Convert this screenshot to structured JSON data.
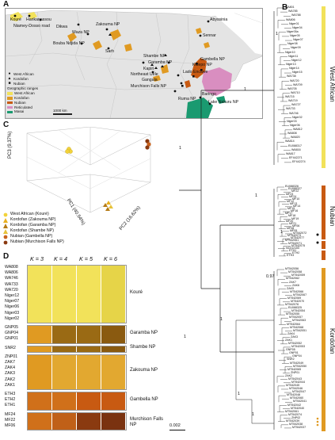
{
  "panels": {
    "a": "A",
    "b": "B",
    "c": "C",
    "d": "D"
  },
  "map": {
    "places": [
      {
        "name": "Kouré"
      },
      {
        "name": "Harikanassou"
      },
      {
        "name": "Niamey-Dosso road"
      },
      {
        "name": "Dikwa"
      },
      {
        "name": "Waza NP"
      },
      {
        "name": "Zakouma NP"
      },
      {
        "name": "Bouba Ndjida NP"
      },
      {
        "name": "Sarh"
      },
      {
        "name": "Abyssinia"
      },
      {
        "name": "Sennar"
      },
      {
        "name": "Shambe NP"
      },
      {
        "name": "Gambella NP"
      },
      {
        "name": "Garamba NP"
      },
      {
        "name": "Kapiri"
      },
      {
        "name": "Northeast Uele"
      },
      {
        "name": "Gangala"
      },
      {
        "name": "Kidepo NP"
      },
      {
        "name": "Lado Enclave"
      },
      {
        "name": "Murchison Falls NP"
      },
      {
        "name": "Ruma NP"
      },
      {
        "name": "Baringo"
      },
      {
        "name": "Lake Nakuru NP"
      }
    ],
    "legend": {
      "samples": [
        {
          "label": "West African",
          "marker": "●"
        },
        {
          "label": "Kordofan",
          "marker": "▲"
        },
        {
          "label": "Nubian",
          "marker": "■"
        }
      ],
      "ranges_title": "Geographic ranges",
      "ranges": [
        {
          "label": "West African",
          "color": "#f2e25a"
        },
        {
          "label": "Kordofan",
          "color": "#e09a22"
        },
        {
          "label": "Nubian",
          "color": "#c85a12"
        },
        {
          "label": "Reticulated",
          "color": "#d98ec0"
        },
        {
          "label": "Masai",
          "color": "#1a9a70"
        }
      ],
      "scale": "1000 km"
    }
  },
  "pca": {
    "axes": {
      "pc1": "PC1 (40.54%)",
      "pc2": "PC2 (16.62%)",
      "pc3": "PC3 (9.37%)"
    },
    "legend": [
      {
        "label": "West African (Kouré)",
        "color": "#f2d23a",
        "shape": "circle"
      },
      {
        "label": "Kordofan (Zakouma NP)",
        "color": "#e9b020",
        "shape": "triangle"
      },
      {
        "label": "Kordofan (Garamba NP)",
        "color": "#b57a14",
        "shape": "triangle"
      },
      {
        "label": "Kordofan (Shambe NP)",
        "color": "#e6c23a",
        "shape": "triangle"
      },
      {
        "label": "Nubian (Gambella NP)",
        "color": "#c8621e",
        "shape": "circle"
      },
      {
        "label": "Nubian (Murchison Falls NP)",
        "color": "#8a3a10",
        "shape": "circle"
      }
    ]
  },
  "structure": {
    "k_labels": [
      "K = 3",
      "K = 4",
      "K = 5",
      "K = 6"
    ],
    "groups": [
      {
        "name": "Kouré",
        "samples": [
          "WA808",
          "WA806",
          "WA746",
          "WA733",
          "WA720",
          "Niger12",
          "Niger07",
          "Niger06",
          "Niger03",
          "Niger02"
        ],
        "colors": [
          "#f2e25a",
          "#f2e25a",
          "#f2e25a",
          "#e6d448"
        ]
      },
      {
        "name": "Garamba NP",
        "samples": [
          "GNP05",
          "GNP04",
          "GNP01"
        ],
        "colors": [
          "#e09a22",
          "#9a6a14",
          "#9a6a14",
          "#8a5a10"
        ]
      },
      {
        "name": "Shambe NP",
        "samples": [
          "SNR2"
        ],
        "colors": [
          "#e09a22",
          "#9a6a14",
          "#9a6a14",
          "#8a5a10"
        ]
      },
      {
        "name": "Zakouma NP",
        "samples": [
          "ZNP01",
          "ZAK7",
          "ZAK4",
          "ZAK3",
          "ZAK2",
          "ZAK1"
        ],
        "colors": [
          "#e09a22",
          "#e2a830",
          "#e2a830",
          "#e2a830"
        ]
      },
      {
        "name": "Gambella NP",
        "samples": [
          "ETH3",
          "ETH2",
          "ETH1"
        ],
        "colors": [
          "#d0701a",
          "#d0701a",
          "#c85a12",
          "#c85a12"
        ]
      },
      {
        "name": "Murchison Falls NP",
        "samples": [
          "MF24",
          "MF22",
          "MF06"
        ],
        "colors": [
          "#d0701a",
          "#c06018",
          "#8a3a10",
          "#7a3210"
        ]
      }
    ]
  },
  "tree": {
    "clades": [
      {
        "name": "West African",
        "color": "#f2e25a"
      },
      {
        "name": "Nubian",
        "color": "#c85a12"
      },
      {
        "name": "Kordofan",
        "color": "#e09a22"
      }
    ],
    "support": [
      "1",
      "1",
      "1",
      "1",
      "1",
      "1",
      "1",
      "1",
      "1",
      "0.97"
    ],
    "scale": "0.002",
    "wa_tips": [
      "WA801",
      "WA785",
      "WA788",
      "WA806",
      "Niger01",
      "Niger04",
      "Niger05a",
      "Niger05",
      "Niger07",
      "Niger08",
      "Niger09",
      "Niger10",
      "Niger11",
      "Niger12",
      "Niger13",
      "Niger14",
      "Niger15",
      "WA738",
      "WA720",
      "WA709",
      "WA705",
      "WA710",
      "WA715",
      "WA719",
      "WA727",
      "WA733",
      "WA746",
      "Niger02",
      "Niger03",
      "Niger06",
      "WA812",
      "WA808",
      "WA820",
      "WA814",
      "EU088317",
      "WA816",
      "WA817",
      "EF442271",
      "EF442274"
    ],
    "nub_tips": [
      "EU088326",
      "EU088327",
      "MF22",
      "MF23",
      "MF24",
      "MF10",
      "MF12",
      "MF13",
      "MF14",
      "MF15",
      "MF16",
      "MF17",
      "MF18",
      "MF19",
      "MF20",
      "MF21",
      "MF06",
      "MF08",
      "MF09",
      "MT542072",
      "MT542073",
      "MT542077",
      "MT542061",
      "MT542071",
      "MT542075",
      "NC012100",
      "ETH1",
      "ETH2",
      "ETH3"
    ],
    "kor_tips": [
      "MT542056",
      "MT542058",
      "MT542059",
      "MT542062",
      "ZAK7",
      "ZAK6",
      "ZAK5",
      "MT542066",
      "MT542067",
      "MT542069",
      "MT542070",
      "MT542076",
      "EU088325",
      "MT542054",
      "MT542055",
      "MT542057",
      "MT542063",
      "MT542064",
      "MT542068",
      "MT542051",
      "ZAK4",
      "ZAK3",
      "ZAK1",
      "MT542052",
      "MT542053",
      "GNP05",
      "GNP01",
      "GNP04",
      "SNR2",
      "MT542049",
      "MT542050",
      "MT542065",
      "ZNP01",
      "ZAK2",
      "MT542043",
      "MT542044",
      "MT542045",
      "MT542046",
      "MT542047",
      "MT542048",
      "MT542060",
      "MT542041",
      "MT542042",
      "MT542040",
      "MT542061",
      "MT542074",
      "ZNP02",
      "MT542039",
      "MT542038",
      "MT542037"
    ]
  }
}
